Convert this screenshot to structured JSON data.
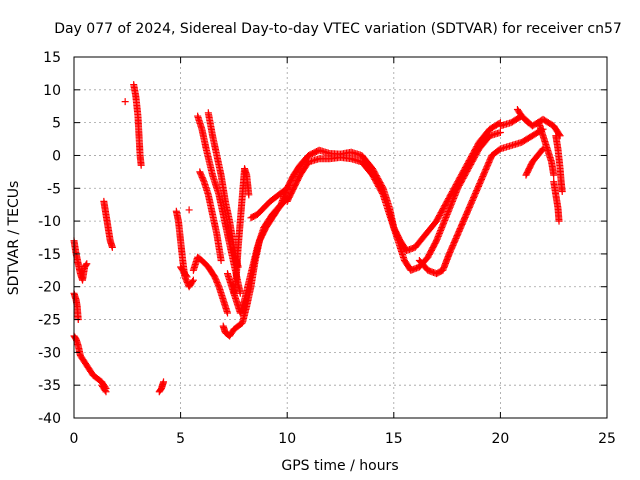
{
  "chart_data": {
    "type": "scatter",
    "title": "Day 077 of 2024, Sidereal Day-to-day VTEC variation (SDTVAR) for receiver cn57",
    "xlabel": "GPS time / hours",
    "ylabel": "SDTVAR / TECUs",
    "xlim": [
      0,
      25
    ],
    "ylim": [
      -40,
      15
    ],
    "x_ticks": [
      0,
      5,
      10,
      15,
      20,
      25
    ],
    "y_ticks": [
      -40,
      -35,
      -30,
      -25,
      -20,
      -15,
      -10,
      -5,
      0,
      5,
      10,
      15
    ],
    "x_tick_labels": [
      "0",
      "5",
      "10",
      "15",
      "20",
      "25"
    ],
    "y_tick_labels": [
      "-40",
      "-35",
      "-30",
      "-25",
      "-20",
      "-15",
      "-10",
      "-5",
      "0",
      "5",
      "10",
      "15"
    ],
    "grid": true,
    "marker": "+",
    "series": [
      {
        "name": "SDTVAR",
        "color": "#ff0000",
        "segments": [
          [
            [
              0.0,
              -13
            ],
            [
              0.1,
              -15
            ],
            [
              0.2,
              -16.5
            ],
            [
              0.3,
              -18
            ],
            [
              0.4,
              -19
            ],
            [
              0.5,
              -17
            ],
            [
              0.6,
              -16.5
            ]
          ],
          [
            [
              0.0,
              -21
            ],
            [
              0.1,
              -22
            ],
            [
              0.15,
              -23
            ],
            [
              0.2,
              -25
            ]
          ],
          [
            [
              0.0,
              -27.5
            ],
            [
              0.1,
              -28
            ],
            [
              0.2,
              -29
            ],
            [
              0.3,
              -30.5
            ],
            [
              0.5,
              -31.5
            ],
            [
              0.7,
              -32.5
            ],
            [
              0.9,
              -33.5
            ],
            [
              1.1,
              -34
            ],
            [
              1.3,
              -34.5
            ],
            [
              1.5,
              -35.5
            ]
          ],
          [
            [
              1.3,
              -35
            ],
            [
              1.5,
              -36
            ]
          ],
          [
            [
              1.4,
              -7
            ],
            [
              1.5,
              -9
            ],
            [
              1.6,
              -11
            ],
            [
              1.7,
              -13
            ],
            [
              1.8,
              -14
            ]
          ],
          [
            [
              2.4,
              8.2
            ]
          ],
          [
            [
              2.8,
              10.8
            ],
            [
              2.9,
              9
            ],
            [
              3.0,
              6
            ],
            [
              3.05,
              3
            ],
            [
              3.1,
              0
            ],
            [
              3.15,
              -1.5
            ]
          ],
          [
            [
              4.0,
              -36
            ],
            [
              4.1,
              -35.5
            ],
            [
              4.2,
              -34.5
            ]
          ],
          [
            [
              4.8,
              -8.5
            ],
            [
              4.9,
              -10
            ],
            [
              5.0,
              -13
            ],
            [
              5.1,
              -16
            ],
            [
              5.2,
              -18.5
            ],
            [
              5.4,
              -20
            ],
            [
              5.6,
              -19
            ]
          ],
          [
            [
              5.0,
              -17
            ],
            [
              5.3,
              -18.5
            ]
          ],
          [
            [
              5.4,
              -8.3
            ]
          ],
          [
            [
              5.6,
              -17.5
            ],
            [
              5.8,
              -15.5
            ],
            [
              6.0,
              -16
            ],
            [
              6.3,
              -17
            ],
            [
              6.6,
              -18.5
            ],
            [
              6.8,
              -20
            ],
            [
              7.0,
              -22
            ],
            [
              7.2,
              -24
            ]
          ],
          [
            [
              5.8,
              6
            ],
            [
              6.0,
              4
            ],
            [
              6.2,
              1
            ],
            [
              6.5,
              -3
            ],
            [
              6.8,
              -6
            ],
            [
              7.0,
              -9
            ],
            [
              7.2,
              -12
            ],
            [
              7.4,
              -15
            ],
            [
              7.6,
              -18
            ],
            [
              7.8,
              -21
            ]
          ],
          [
            [
              6.3,
              6.5
            ],
            [
              6.5,
              3
            ],
            [
              6.7,
              0
            ],
            [
              6.9,
              -3
            ],
            [
              7.1,
              -7
            ],
            [
              7.3,
              -10
            ],
            [
              7.5,
              -14
            ],
            [
              7.7,
              -17
            ]
          ],
          [
            [
              5.9,
              -2.5
            ],
            [
              6.1,
              -4
            ],
            [
              6.3,
              -6
            ],
            [
              6.5,
              -9
            ],
            [
              6.7,
              -12
            ],
            [
              6.9,
              -16
            ]
          ],
          [
            [
              7.0,
              -26
            ],
            [
              7.1,
              -27
            ],
            [
              7.3,
              -27.5
            ],
            [
              7.5,
              -26.5
            ],
            [
              7.7,
              -26
            ],
            [
              7.9,
              -25.5
            ],
            [
              8.1,
              -23
            ],
            [
              8.3,
              -20
            ],
            [
              8.5,
              -16
            ],
            [
              8.7,
              -13
            ],
            [
              9.0,
              -11
            ],
            [
              9.3,
              -9.5
            ],
            [
              9.6,
              -8
            ],
            [
              10.0,
              -6.5
            ]
          ],
          [
            [
              7.2,
              -18
            ],
            [
              7.4,
              -20
            ],
            [
              7.6,
              -22
            ],
            [
              7.8,
              -24
            ],
            [
              8.0,
              -22
            ],
            [
              8.3,
              -18
            ],
            [
              8.6,
              -14
            ],
            [
              8.9,
              -11
            ],
            [
              9.3,
              -9
            ],
            [
              9.7,
              -7.5
            ],
            [
              10.0,
              -5
            ]
          ],
          [
            [
              7.5,
              -21
            ],
            [
              7.6,
              -19
            ],
            [
              7.7,
              -14
            ],
            [
              7.8,
              -10
            ],
            [
              7.9,
              -6
            ],
            [
              8.0,
              -2
            ],
            [
              8.1,
              -3
            ],
            [
              8.2,
              -6
            ]
          ],
          [
            [
              8.3,
              -9.5
            ],
            [
              8.6,
              -9
            ],
            [
              8.9,
              -8
            ],
            [
              9.2,
              -7
            ],
            [
              9.6,
              -6
            ],
            [
              10.0,
              -5
            ]
          ],
          [
            [
              10.0,
              -5
            ],
            [
              10.3,
              -3
            ],
            [
              10.6,
              -1.5
            ],
            [
              11.0,
              0
            ],
            [
              11.5,
              0.8
            ],
            [
              12.0,
              0.3
            ],
            [
              12.5,
              0.2
            ],
            [
              13.0,
              0.5
            ],
            [
              13.5,
              0
            ],
            [
              14.0,
              -2
            ],
            [
              14.5,
              -5
            ],
            [
              14.8,
              -8
            ],
            [
              15.0,
              -11
            ],
            [
              15.3,
              -13
            ],
            [
              15.6,
              -14.5
            ],
            [
              16.0,
              -14
            ],
            [
              16.5,
              -12
            ],
            [
              17.0,
              -10
            ],
            [
              17.5,
              -7
            ],
            [
              18.0,
              -4
            ],
            [
              18.5,
              -1
            ],
            [
              19.0,
              2
            ],
            [
              19.5,
              4
            ],
            [
              20.0,
              5
            ]
          ],
          [
            [
              10.0,
              -7
            ],
            [
              10.3,
              -5
            ],
            [
              10.6,
              -3
            ],
            [
              11.0,
              -1
            ],
            [
              11.5,
              -0.5
            ],
            [
              12.0,
              -0.5
            ],
            [
              12.5,
              -0.3
            ],
            [
              13.0,
              -0.5
            ],
            [
              13.5,
              -1
            ],
            [
              14.0,
              -3
            ],
            [
              14.5,
              -6
            ],
            [
              14.8,
              -9
            ],
            [
              15.2,
              -13
            ],
            [
              15.5,
              -16
            ],
            [
              15.8,
              -17.5
            ],
            [
              16.2,
              -17
            ],
            [
              16.6,
              -15.5
            ],
            [
              17.0,
              -13
            ],
            [
              17.5,
              -9
            ],
            [
              18.0,
              -5
            ],
            [
              18.5,
              -2
            ],
            [
              19.0,
              1
            ],
            [
              19.5,
              3
            ],
            [
              20.0,
              3.5
            ]
          ],
          [
            [
              16.2,
              -16
            ],
            [
              16.6,
              -17.5
            ],
            [
              17.0,
              -18
            ],
            [
              17.3,
              -17.5
            ],
            [
              17.6,
              -15
            ],
            [
              18.0,
              -12
            ],
            [
              18.4,
              -9
            ],
            [
              18.8,
              -6
            ],
            [
              19.2,
              -3
            ],
            [
              19.6,
              0
            ],
            [
              20.0,
              1
            ],
            [
              20.5,
              1.5
            ],
            [
              21.0,
              2
            ],
            [
              21.5,
              3
            ],
            [
              22.0,
              4
            ]
          ],
          [
            [
              20.0,
              4.5
            ],
            [
              20.5,
              5
            ],
            [
              21.0,
              6
            ],
            [
              21.5,
              4.5
            ],
            [
              22.0,
              5.5
            ],
            [
              22.5,
              4.5
            ],
            [
              22.8,
              3
            ]
          ],
          [
            [
              20.8,
              7
            ],
            [
              21.0,
              6
            ],
            [
              21.3,
              5
            ]
          ],
          [
            [
              21.2,
              -3
            ],
            [
              21.5,
              -1
            ],
            [
              22.0,
              1
            ]
          ],
          [
            [
              21.8,
              5
            ],
            [
              22.0,
              3
            ],
            [
              22.2,
              1
            ],
            [
              22.4,
              -1
            ],
            [
              22.5,
              -3
            ]
          ],
          [
            [
              22.5,
              -4
            ],
            [
              22.6,
              -6
            ],
            [
              22.7,
              -8
            ],
            [
              22.75,
              -10
            ]
          ],
          [
            [
              22.6,
              3
            ],
            [
              22.7,
              1
            ],
            [
              22.8,
              -2
            ],
            [
              22.85,
              -4
            ],
            [
              22.9,
              -5.5
            ]
          ]
        ]
      }
    ]
  }
}
